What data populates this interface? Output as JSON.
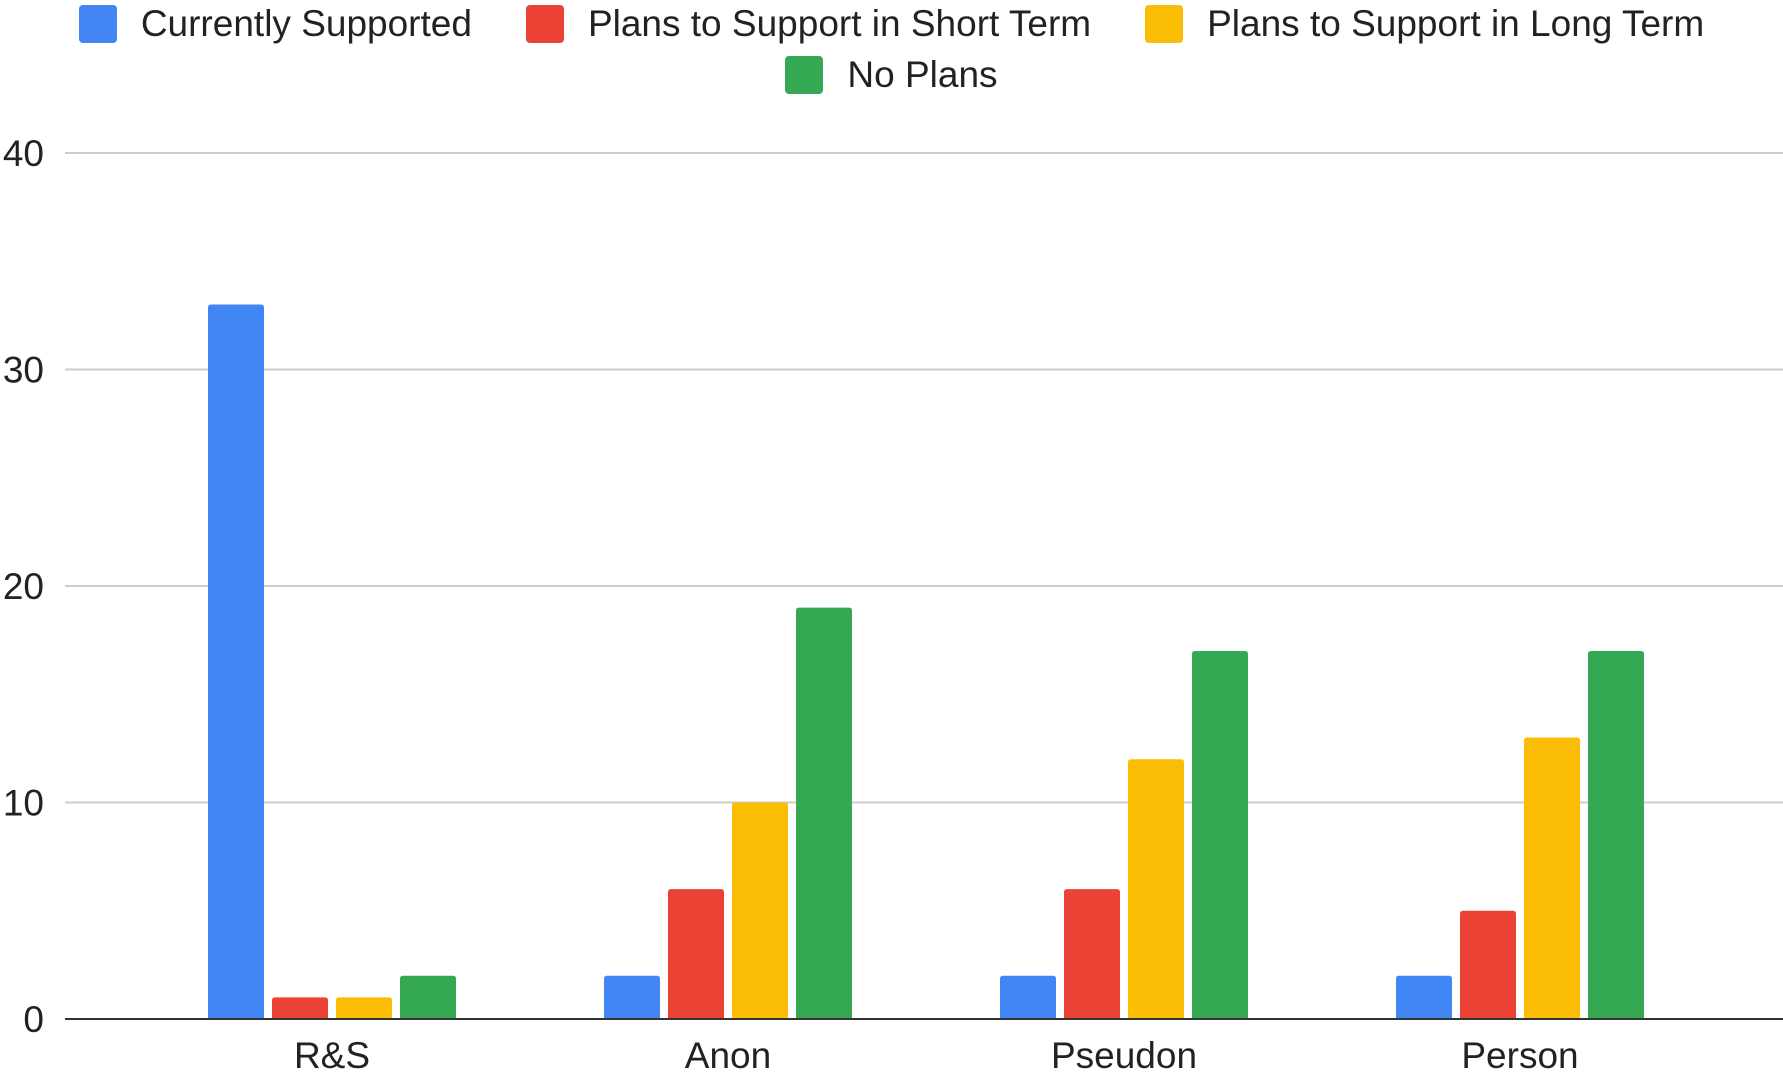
{
  "chart_data": {
    "type": "bar",
    "categories": [
      "R&S",
      "Anon",
      "Pseudon",
      "Person"
    ],
    "series": [
      {
        "name": "Currently Supported",
        "color": "#4285F4",
        "values": [
          33,
          2,
          2,
          2
        ]
      },
      {
        "name": "Plans to Support in Short Term",
        "color": "#EA4335",
        "values": [
          1,
          6,
          6,
          5
        ]
      },
      {
        "name": "Plans to Support in Long Term",
        "color": "#FBBC04",
        "values": [
          1,
          10,
          12,
          13
        ]
      },
      {
        "name": "No Plans",
        "color": "#34A853",
        "values": [
          2,
          19,
          17,
          17
        ]
      }
    ],
    "ylim": [
      0,
      40
    ],
    "yticks": [
      0,
      10,
      20,
      30,
      40
    ],
    "grid": true,
    "legend_position": "top",
    "title": "",
    "xlabel": "",
    "ylabel": ""
  }
}
